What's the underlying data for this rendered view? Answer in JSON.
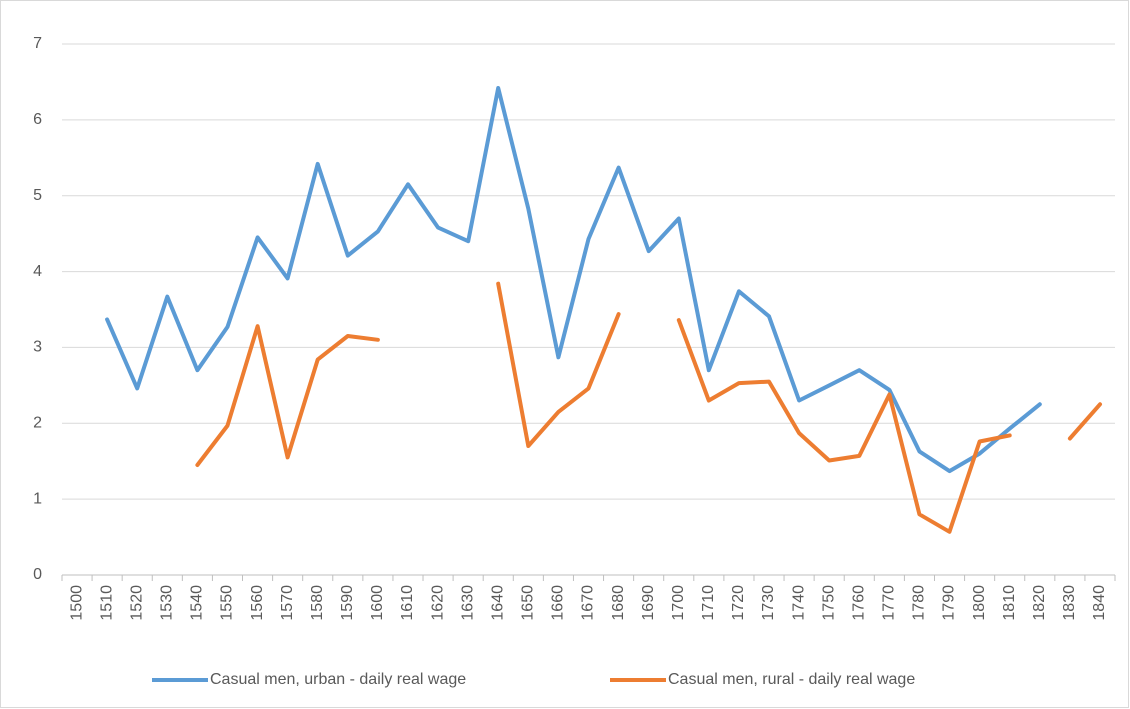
{
  "chart_data": {
    "type": "line",
    "categories": [
      "1500",
      "1510",
      "1520",
      "1530",
      "1540",
      "1550",
      "1560",
      "1570",
      "1580",
      "1590",
      "1600",
      "1610",
      "1620",
      "1630",
      "1640",
      "1650",
      "1660",
      "1670",
      "1680",
      "1690",
      "1700",
      "1710",
      "1720",
      "1730",
      "1740",
      "1750",
      "1760",
      "1770",
      "1780",
      "1790",
      "1800",
      "1810",
      "1820",
      "1830",
      "1840"
    ],
    "series": [
      {
        "name": "Casual men, urban - daily real wage",
        "color": "#5b9bd5",
        "values": [
          null,
          3.37,
          2.46,
          3.67,
          2.7,
          3.27,
          4.45,
          3.91,
          5.42,
          4.21,
          4.53,
          5.15,
          4.58,
          4.4,
          6.42,
          4.83,
          2.87,
          4.43,
          5.37,
          4.27,
          4.7,
          2.7,
          3.74,
          3.41,
          2.3,
          2.5,
          2.7,
          2.44,
          1.63,
          1.37,
          1.6,
          1.93,
          2.25,
          null,
          null
        ]
      },
      {
        "name": "Casual men, rural - daily real wage",
        "color": "#ed7d31",
        "values": [
          null,
          null,
          null,
          null,
          1.45,
          1.97,
          3.28,
          1.55,
          2.84,
          3.15,
          3.1,
          null,
          null,
          null,
          3.84,
          1.7,
          2.15,
          2.46,
          3.44,
          null,
          3.36,
          2.3,
          2.53,
          2.55,
          1.87,
          1.51,
          1.57,
          2.38,
          0.8,
          0.57,
          1.76,
          1.84,
          null,
          1.8,
          2.25
        ]
      }
    ],
    "ylim": [
      0,
      7
    ],
    "yticks": [
      0,
      1,
      2,
      3,
      4,
      5,
      6,
      7
    ],
    "grid": true,
    "legend": "bottom"
  }
}
